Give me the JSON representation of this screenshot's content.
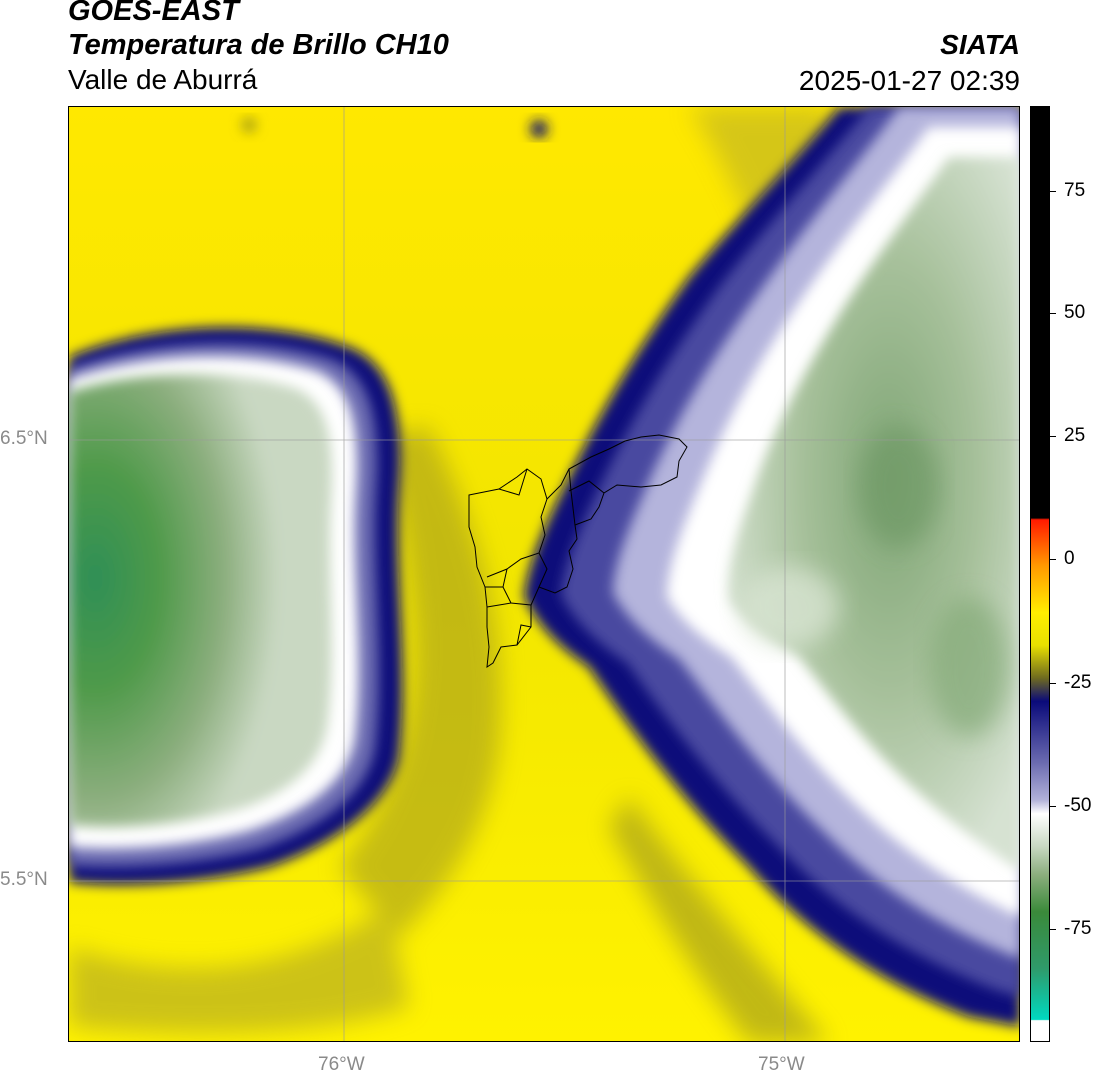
{
  "header": {
    "satellite": "GOES-EAST",
    "product": "Temperatura de Brillo CH10",
    "region": "Valle de Aburrá",
    "organization": "SIATA",
    "timestamp": "2025-01-27 02:39"
  },
  "map": {
    "lat_labels": [
      "6.5°N",
      "5.5°N"
    ],
    "lon_labels": [
      "76°W",
      "75°W"
    ],
    "gridlines": true
  },
  "colorbar": {
    "tick_labels": [
      "75",
      "50",
      "25",
      "0",
      "-25",
      "-50",
      "-75"
    ],
    "range": [
      -95,
      92
    ],
    "colors": {
      "black": "#000000",
      "red": "#ff1a00",
      "orange": "#ff9900",
      "yellow": "#ffee00",
      "olive": "#6f6b1f",
      "navy": "#0a0a7a",
      "lavender": "#b0b0d8",
      "white": "#ffffff",
      "sage": "#a8c09a",
      "green": "#3a8a3a",
      "teal": "#00d9c0"
    }
  }
}
